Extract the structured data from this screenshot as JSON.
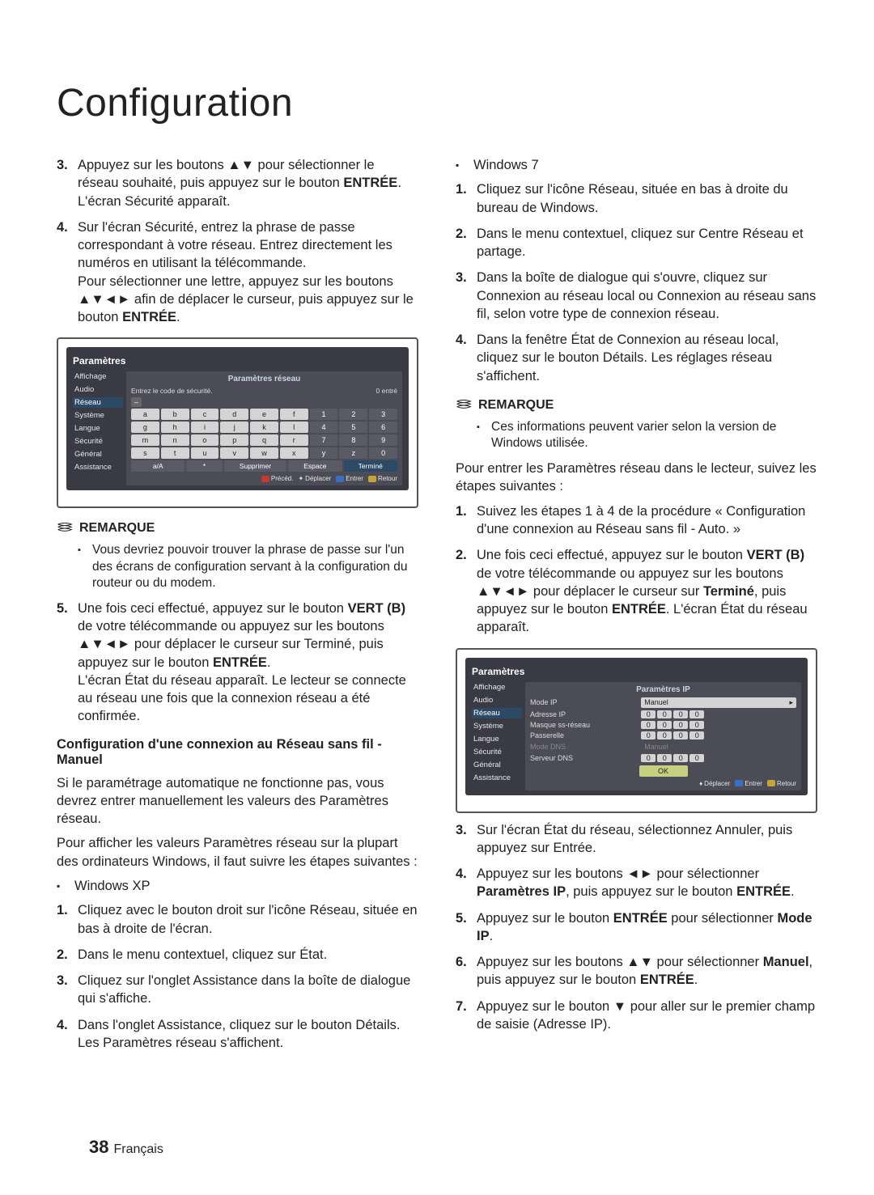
{
  "page": {
    "title": "Configuration",
    "footer_num": "38",
    "footer_lang": "Français"
  },
  "left": {
    "step3": "Appuyez sur les boutons ▲▼ pour sélectionner le réseau souhaité, puis appuyez sur le bouton ",
    "step3_b": "ENTRÉE",
    "step3_after": ". L'écran Sécurité apparaît.",
    "step4a": "Sur l'écran Sécurité, entrez la phrase de passe correspondant à votre réseau. Entrez directement les numéros en utilisant la télécommande.",
    "step4b": "Pour sélectionner une lettre, appuyez sur les boutons ▲▼◄► afin de déplacer le curseur, puis appuyez sur le bouton ",
    "step4b_b": "ENTRÉE",
    "step4b_after": ".",
    "remarque": "REMARQUE",
    "note1": "Vous devriez pouvoir trouver la phrase de passe sur l'un des écrans de configuration servant à la configuration du routeur ou du modem.",
    "step5a": "Une fois ceci effectué, appuyez sur le bouton ",
    "step5a_b": "VERT (B)",
    "step5a_mid": " de votre télécommande ou appuyez sur les boutons ▲▼◄► pour déplacer le curseur sur Terminé, puis appuyez sur le bouton ",
    "step5a_b2": "ENTRÉE",
    "step5a_after": ".",
    "step5b": "L'écran État du réseau apparaît. Le lecteur se connecte au réseau une fois que la connexion réseau a été confirmée.",
    "manual_heading": "Configuration d'une connexion au Réseau sans fil - Manuel",
    "manual_p1": "Si le paramétrage automatique ne fonctionne pas, vous devrez entrer manuellement les valeurs des Paramètres réseau.",
    "manual_p2": "Pour afficher les valeurs Paramètres réseau sur la plupart des ordinateurs Windows, il faut suivre les étapes suivantes :",
    "xp": "Windows XP",
    "xp1": "Cliquez avec le bouton droit sur l'icône Réseau, située en bas à droite de l'écran.",
    "xp2": "Dans le menu contextuel, cliquez sur État.",
    "xp3": "Cliquez sur l'onglet Assistance dans la boîte de dialogue qui s'affiche.",
    "xp4": "Dans l'onglet Assistance, cliquez sur le bouton Détails. Les Paramètres réseau s'affichent."
  },
  "right": {
    "w7": "Windows 7",
    "w7_1": "Cliquez sur l'icône Réseau, située en bas à droite du bureau de Windows.",
    "w7_2": "Dans le menu contextuel, cliquez sur Centre Réseau et partage.",
    "w7_3": "Dans la boîte de dialogue qui s'ouvre, cliquez sur Connexion au réseau local ou Connexion au réseau sans fil, selon votre type de connexion réseau.",
    "w7_4": "Dans la fenêtre État de Connexion au réseau local, cliquez sur le bouton Détails. Les réglages réseau s'affichent.",
    "remarque": "REMARQUE",
    "note1": "Ces informations peuvent varier selon la version de Windows utilisée.",
    "intro": "Pour entrer les Paramètres réseau dans le lecteur, suivez les étapes suivantes :",
    "s1": "Suivez les étapes 1 à 4 de la procédure « Configuration d'une connexion au Réseau sans fil - Auto. »",
    "s2a": "Une fois ceci effectué, appuyez sur le bouton ",
    "s2_b1": "VERT (B)",
    "s2b": " de votre télécommande ou appuyez sur les boutons ▲▼◄► pour déplacer le curseur sur ",
    "s2_b2": "Terminé",
    "s2c": ", puis appuyez sur le bouton ",
    "s2_b3": "ENTRÉE",
    "s2d": ". L'écran État du réseau apparaît.",
    "s3": "Sur l'écran État du réseau, sélectionnez Annuler, puis appuyez sur Entrée.",
    "s4a": "Appuyez sur les boutons ◄► pour sélectionner ",
    "s4_b": "Paramètres IP",
    "s4b": ", puis appuyez sur le bouton ",
    "s4_b2": "ENTRÉE",
    "s4c": ".",
    "s5a": "Appuyez sur le bouton ",
    "s5_b": "ENTRÉE",
    "s5b": " pour sélectionner ",
    "s5_b2": "Mode IP",
    "s5c": ".",
    "s6a": "Appuyez sur les boutons ▲▼ pour sélectionner ",
    "s6_b": "Manuel",
    "s6b": ", puis appuyez sur le bouton ",
    "s6_b2": "ENTRÉE",
    "s6c": ".",
    "s7": "Appuyez sur le bouton ▼ pour aller sur le premier champ de saisie (Adresse IP)."
  },
  "ui1": {
    "title": "Paramètres",
    "panel_title": "Paramètres réseau",
    "side": [
      "Affichage",
      "Audio",
      "Réseau",
      "Système",
      "Langue",
      "Sécurité",
      "Général",
      "Assistance"
    ],
    "prompt": "Entrez le code de sécurité.",
    "entered": "0 entré",
    "keys_row1": [
      "a",
      "b",
      "c",
      "d",
      "e",
      "f",
      "1",
      "2",
      "3"
    ],
    "keys_row2": [
      "g",
      "h",
      "i",
      "j",
      "k",
      "l",
      "4",
      "5",
      "6"
    ],
    "keys_row3": [
      "m",
      "n",
      "o",
      "p",
      "q",
      "r",
      "7",
      "8",
      "9"
    ],
    "keys_row4": [
      "s",
      "t",
      "u",
      "v",
      "w",
      "x",
      "y",
      "z",
      "0"
    ],
    "bottom": [
      "a/A",
      "*",
      "Supprimer",
      "Espace",
      "Terminé"
    ],
    "nav": [
      "Précéd.",
      "Déplacer",
      "Entrer",
      "Retour"
    ]
  },
  "ui2": {
    "title": "Paramètres",
    "panel_title": "Paramètres IP",
    "side": [
      "Affichage",
      "Audio",
      "Réseau",
      "Système",
      "Langue",
      "Sécurité",
      "Général",
      "Assistance"
    ],
    "rows": [
      {
        "label": "Mode IP",
        "kind": "manuel"
      },
      {
        "label": "Adresse IP",
        "kind": "ip"
      },
      {
        "label": "Masque ss-réseau",
        "kind": "ip"
      },
      {
        "label": "Passerelle",
        "kind": "ip"
      },
      {
        "label": "Mode DNS",
        "kind": "manuel_dim"
      },
      {
        "label": "Serveur DNS",
        "kind": "ip"
      }
    ],
    "manuel": "Manuel",
    "ok": "OK",
    "nav": [
      "Déplacer",
      "Entrer",
      "Retour"
    ]
  }
}
